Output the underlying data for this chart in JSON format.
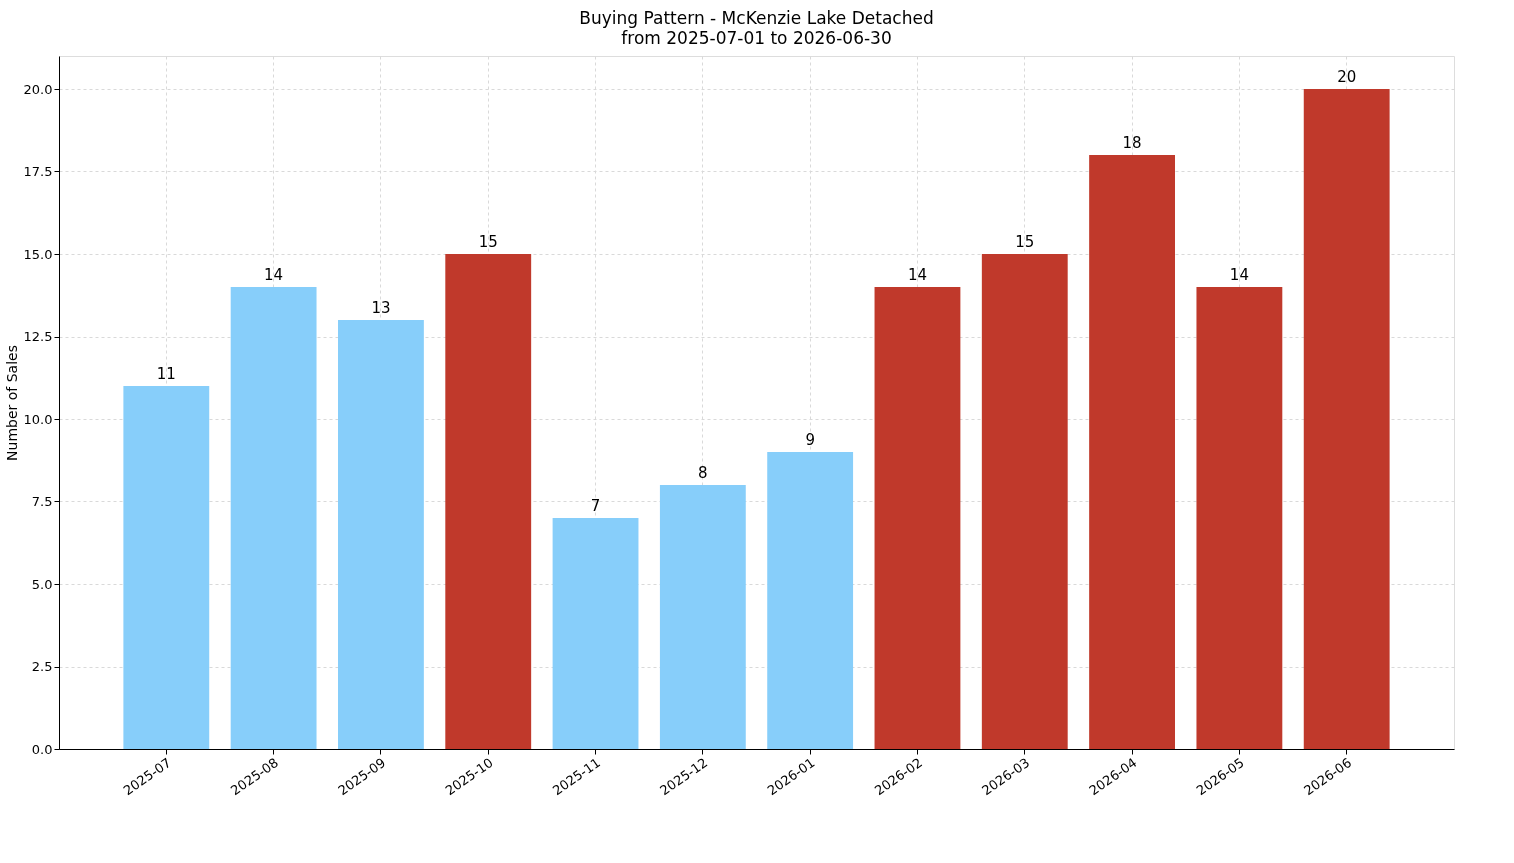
{
  "chart_data": {
    "type": "bar",
    "title": "Buying Pattern - McKenzie Lake Detached",
    "subtitle": "from 2025-07-01 to 2026-06-30",
    "ylabel": "Number of Sales",
    "categories": [
      "2025-07",
      "2025-08",
      "2025-09",
      "2025-10",
      "2025-11",
      "2025-12",
      "2026-01",
      "2026-02",
      "2026-03",
      "2026-04",
      "2026-05",
      "2026-06"
    ],
    "values": [
      11,
      14,
      13,
      15,
      7,
      8,
      9,
      14,
      15,
      18,
      14,
      20
    ],
    "colors": [
      "#87cefa",
      "#87cefa",
      "#87cefa",
      "#c0392b",
      "#87cefa",
      "#87cefa",
      "#87cefa",
      "#c0392b",
      "#c0392b",
      "#c0392b",
      "#c0392b",
      "#c0392b"
    ],
    "ylim": [
      0,
      21
    ],
    "yticks": [
      {
        "value": 0,
        "label": "0.0"
      },
      {
        "value": 2.5,
        "label": "2.5"
      },
      {
        "value": 5,
        "label": "5.0"
      },
      {
        "value": 7.5,
        "label": "7.5"
      },
      {
        "value": 10,
        "label": "10.0"
      },
      {
        "value": 12.5,
        "label": "12.5"
      },
      {
        "value": 15,
        "label": "15.0"
      },
      {
        "value": 17.5,
        "label": "17.5"
      },
      {
        "value": 20,
        "label": "20.0"
      }
    ],
    "grid": true,
    "data_labels": true
  }
}
